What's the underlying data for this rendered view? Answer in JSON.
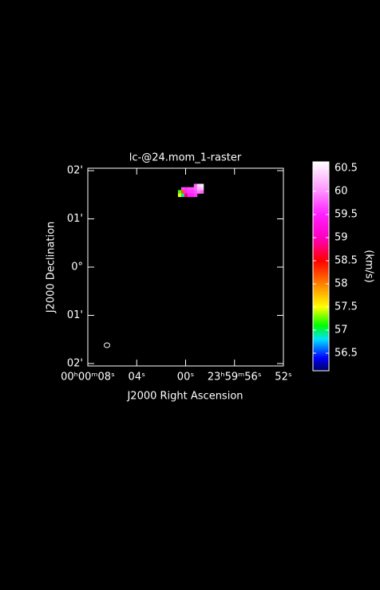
{
  "chart_data": {
    "type": "raster",
    "title": "lc-@24.mom_1-raster",
    "x_label": "J2000 Right Ascension",
    "y_label": "J2000 Declination",
    "colorbar_label": "(km/s)",
    "xlim": [
      8,
      -8
    ],
    "ylim": [
      -2.05,
      2.05
    ],
    "xticks": [
      {
        "value": 8,
        "label": "00ʰ00ᵐ08ˢ"
      },
      {
        "value": 4,
        "label": "04ˢ"
      },
      {
        "value": 0,
        "label": "00ˢ"
      },
      {
        "value": -4,
        "label": "23ʰ59ᵐ56ˢ"
      },
      {
        "value": -8,
        "label": "52ˢ"
      }
    ],
    "yticks": [
      {
        "value": 2,
        "label": "02'"
      },
      {
        "value": 1,
        "label": "01'"
      },
      {
        "value": 0,
        "label": "0°"
      },
      {
        "value": -1,
        "label": "01'"
      },
      {
        "value": -2,
        "label": "02'"
      }
    ],
    "clim": [
      56.12,
      60.64
    ],
    "cticks": [
      56.5,
      57,
      57.5,
      58,
      58.5,
      59,
      59.5,
      60,
      60.5
    ],
    "colormap": [
      {
        "value": 56.12,
        "color": "#000060"
      },
      {
        "value": 56.4,
        "color": "#0000ff"
      },
      {
        "value": 56.8,
        "color": "#00e0ff"
      },
      {
        "value": 57.1,
        "color": "#00ff00"
      },
      {
        "value": 57.5,
        "color": "#ffff00"
      },
      {
        "value": 58.0,
        "color": "#ff8000"
      },
      {
        "value": 58.5,
        "color": "#ff0000"
      },
      {
        "value": 59.0,
        "color": "#ff00c0"
      },
      {
        "value": 59.5,
        "color": "#ff20ff"
      },
      {
        "value": 60.0,
        "color": "#ff90ff"
      },
      {
        "value": 60.64,
        "color": "#ffffff"
      }
    ],
    "pixels": {
      "x": [
        -0.82,
        -1.08,
        -1.34,
        0.22,
        -0.04,
        -0.3,
        -0.56,
        -0.82,
        -1.08,
        -1.34,
        0.48,
        0.22,
        -0.04,
        -0.3,
        -0.56,
        -0.82,
        -1.08,
        -1.34,
        0.48,
        0.22,
        -0.04,
        -0.3,
        -0.56,
        -0.82
      ],
      "y": [
        1.69,
        1.69,
        1.69,
        1.62,
        1.62,
        1.62,
        1.62,
        1.62,
        1.62,
        1.62,
        1.56,
        1.56,
        1.56,
        1.56,
        1.56,
        1.56,
        1.56,
        1.56,
        1.49,
        1.49,
        1.49,
        1.49,
        1.49,
        1.49
      ],
      "values": [
        59.8,
        60.4,
        60.5,
        59.7,
        59.6,
        59.7,
        59.7,
        59.8,
        60.2,
        60.3,
        57.2,
        58.2,
        59.5,
        59.6,
        59.6,
        59.7,
        59.9,
        59.8,
        57.5,
        56.9,
        58.8,
        59.5,
        59.5,
        59.6
      ]
    }
  }
}
